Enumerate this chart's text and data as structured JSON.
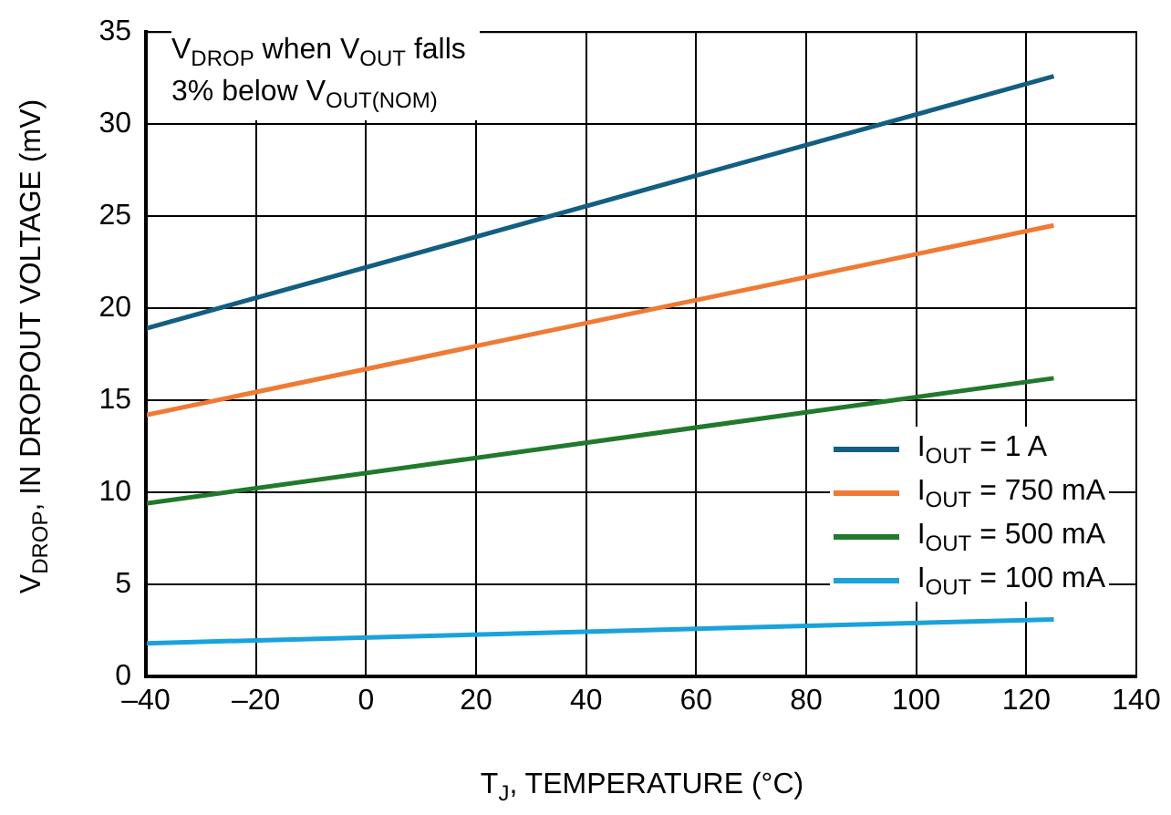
{
  "chart_data": {
    "type": "line",
    "xlabel": "T$_{J}$, TEMPERATURE (°C)",
    "ylabel": "V$_{DROP}$, IN DROPOUT VOLTAGE (mV)",
    "annotations": [
      "V$_{DROP}$ when V$_{OUT}$ falls\n3% below V$_{OUT(NOM)}$"
    ],
    "x": [
      -40,
      125
    ],
    "series": [
      {
        "name": "I$_{OUT}$ = 1 A",
        "color": "#135e82",
        "values": [
          18.9,
          32.6
        ]
      },
      {
        "name": "I$_{OUT}$ = 750 mA",
        "color": "#f07a33",
        "values": [
          14.2,
          24.5
        ]
      },
      {
        "name": "I$_{OUT}$ = 500 mA",
        "color": "#217a2b",
        "values": [
          9.4,
          16.2
        ]
      },
      {
        "name": "I$_{OUT}$ = 100 mA",
        "color": "#1aa2dc",
        "values": [
          1.8,
          3.1
        ]
      }
    ],
    "xlim": [
      -40,
      140
    ],
    "xticks": [
      {
        "value": -40,
        "label": "–40"
      },
      {
        "value": -20,
        "label": "–20"
      },
      0,
      20,
      40,
      60,
      80,
      100,
      120,
      140
    ],
    "ylim": [
      0,
      35
    ],
    "yticks": [
      0,
      5,
      10,
      15,
      20,
      25,
      30,
      35
    ],
    "grid": true,
    "legend": "bottom right",
    "marker": "none",
    "line_style": "solid"
  }
}
